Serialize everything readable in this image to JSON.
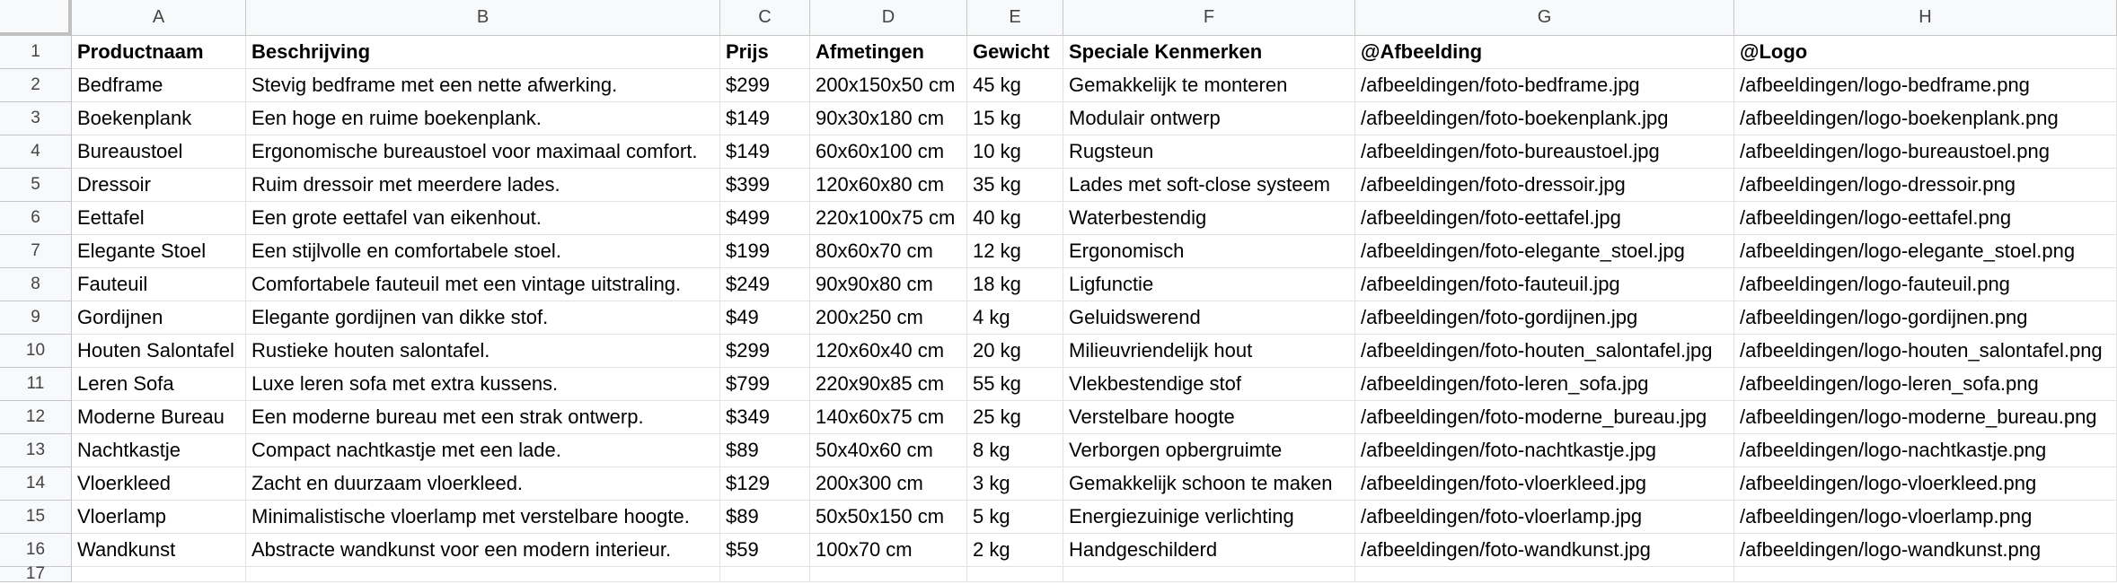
{
  "sheet": {
    "columns": [
      "A",
      "B",
      "C",
      "D",
      "E",
      "F",
      "G",
      "H"
    ],
    "row_numbers": [
      "1",
      "2",
      "3",
      "4",
      "5",
      "6",
      "7",
      "8",
      "9",
      "10",
      "11",
      "12",
      "13",
      "14",
      "15",
      "16",
      "17"
    ],
    "header": [
      "Productnaam",
      "Beschrijving",
      "Prijs",
      "Afmetingen",
      "Gewicht",
      "Speciale Kenmerken",
      "@Afbeelding",
      "@Logo"
    ],
    "rows": [
      [
        "Bedframe",
        "Stevig bedframe met een nette afwerking.",
        "$299",
        "200x150x50 cm",
        "45 kg",
        "Gemakkelijk te monteren",
        "/afbeeldingen/foto-bedframe.jpg",
        "/afbeeldingen/logo-bedframe.png"
      ],
      [
        "Boekenplank",
        "Een hoge en ruime boekenplank.",
        "$149",
        "90x30x180 cm",
        "15 kg",
        "Modulair ontwerp",
        "/afbeeldingen/foto-boekenplank.jpg",
        "/afbeeldingen/logo-boekenplank.png"
      ],
      [
        "Bureaustoel",
        "Ergonomische bureaustoel voor maximaal comfort.",
        "$149",
        "60x60x100 cm",
        "10 kg",
        "Rugsteun",
        "/afbeeldingen/foto-bureaustoel.jpg",
        "/afbeeldingen/logo-bureaustoel.png"
      ],
      [
        "Dressoir",
        "Ruim dressoir met meerdere lades.",
        "$399",
        "120x60x80 cm",
        "35 kg",
        "Lades met soft-close systeem",
        "/afbeeldingen/foto-dressoir.jpg",
        "/afbeeldingen/logo-dressoir.png"
      ],
      [
        "Eettafel",
        "Een grote eettafel van eikenhout.",
        "$499",
        "220x100x75 cm",
        "40 kg",
        "Waterbestendig",
        "/afbeeldingen/foto-eettafel.jpg",
        "/afbeeldingen/logo-eettafel.png"
      ],
      [
        "Elegante Stoel",
        "Een stijlvolle en comfortabele stoel.",
        "$199",
        "80x60x70 cm",
        "12 kg",
        "Ergonomisch",
        "/afbeeldingen/foto-elegante_stoel.jpg",
        "/afbeeldingen/logo-elegante_stoel.png"
      ],
      [
        "Fauteuil",
        "Comfortabele fauteuil met een vintage uitstraling.",
        "$249",
        "90x90x80 cm",
        "18 kg",
        "Ligfunctie",
        "/afbeeldingen/foto-fauteuil.jpg",
        "/afbeeldingen/logo-fauteuil.png"
      ],
      [
        "Gordijnen",
        "Elegante gordijnen van dikke stof.",
        "$49",
        "200x250 cm",
        "4 kg",
        "Geluidswerend",
        "/afbeeldingen/foto-gordijnen.jpg",
        "/afbeeldingen/logo-gordijnen.png"
      ],
      [
        "Houten Salontafel",
        "Rustieke houten salontafel.",
        "$299",
        "120x60x40 cm",
        "20 kg",
        "Milieuvriendelijk hout",
        "/afbeeldingen/foto-houten_salontafel.jpg",
        "/afbeeldingen/logo-houten_salontafel.png"
      ],
      [
        "Leren Sofa",
        "Luxe leren sofa met extra kussens.",
        "$799",
        "220x90x85 cm",
        "55 kg",
        "Vlekbestendige stof",
        "/afbeeldingen/foto-leren_sofa.jpg",
        "/afbeeldingen/logo-leren_sofa.png"
      ],
      [
        "Moderne Bureau",
        "Een moderne bureau met een strak ontwerp.",
        "$349",
        "140x60x75 cm",
        "25 kg",
        "Verstelbare hoogte",
        "/afbeeldingen/foto-moderne_bureau.jpg",
        "/afbeeldingen/logo-moderne_bureau.png"
      ],
      [
        "Nachtkastje",
        "Compact nachtkastje met een lade.",
        "$89",
        "50x40x60 cm",
        "8 kg",
        "Verborgen opbergruimte",
        "/afbeeldingen/foto-nachtkastje.jpg",
        "/afbeeldingen/logo-nachtkastje.png"
      ],
      [
        "Vloerkleed",
        "Zacht en duurzaam vloerkleed.",
        "$129",
        "200x300 cm",
        "3 kg",
        "Gemakkelijk schoon te maken",
        "/afbeeldingen/foto-vloerkleed.jpg",
        "/afbeeldingen/logo-vloerkleed.png"
      ],
      [
        "Vloerlamp",
        "Minimalistische vloerlamp met verstelbare hoogte.",
        "$89",
        "50x50x150 cm",
        "5 kg",
        "Energiezuinige verlichting",
        "/afbeeldingen/foto-vloerlamp.jpg",
        "/afbeeldingen/logo-vloerlamp.png"
      ],
      [
        "Wandkunst",
        "Abstracte wandkunst voor een modern interieur.",
        "$59",
        "100x70 cm",
        "2 kg",
        "Handgeschilderd",
        "/afbeeldingen/foto-wandkunst.jpg",
        "/afbeeldingen/logo-wandkunst.png"
      ]
    ]
  }
}
